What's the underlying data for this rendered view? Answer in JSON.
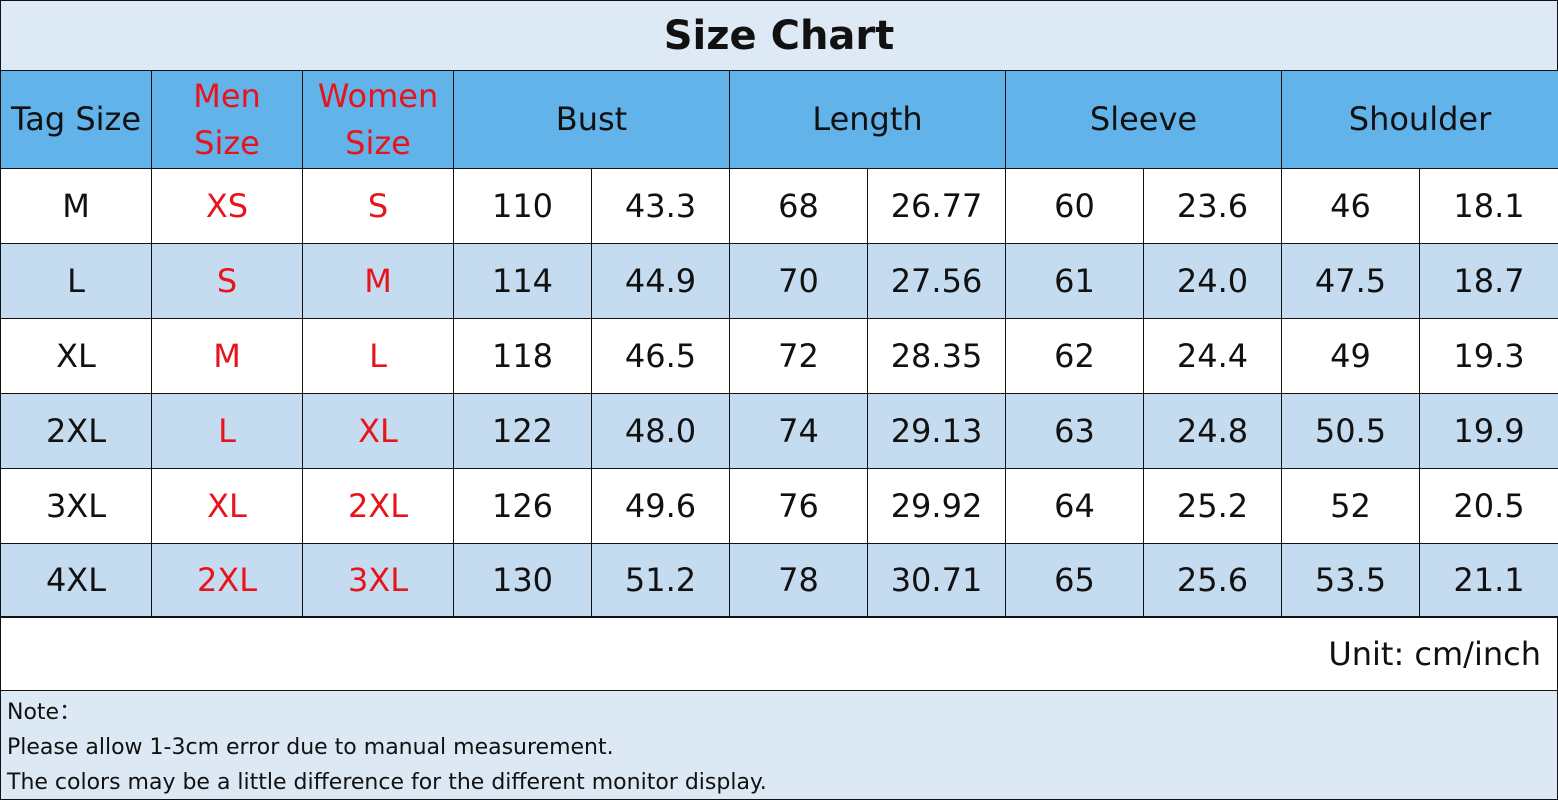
{
  "header": {
    "title": "Size Chart"
  },
  "table": {
    "columns": [
      "Tag Size",
      "Men Size",
      "Women Size",
      "Bust",
      "Length",
      "Sleeve",
      "Shoulder"
    ],
    "rows": [
      [
        "M",
        "XS",
        "S",
        "110",
        "43.3",
        "68",
        "26.77",
        "60",
        "23.6",
        "46",
        "18.1"
      ],
      [
        "L",
        "S",
        "M",
        "114",
        "44.9",
        "70",
        "27.56",
        "61",
        "24.0",
        "47.5",
        "18.7"
      ],
      [
        "XL",
        "M",
        "L",
        "118",
        "46.5",
        "72",
        "28.35",
        "62",
        "24.4",
        "49",
        "19.3"
      ],
      [
        "2XL",
        "L",
        "XL",
        "122",
        "48.0",
        "74",
        "29.13",
        "63",
        "24.8",
        "50.5",
        "19.9"
      ],
      [
        "3XL",
        "XL",
        "2XL",
        "126",
        "49.6",
        "76",
        "29.92",
        "64",
        "25.2",
        "52",
        "20.5"
      ],
      [
        "4XL",
        "2XL",
        "3XL",
        "130",
        "51.2",
        "78",
        "30.71",
        "65",
        "25.6",
        "53.5",
        "21.1"
      ]
    ]
  },
  "unit": "Unit: cm/inch",
  "note": {
    "lines": [
      "Note：",
      "Please allow 1-3cm error due to manual measurement.",
      "The colors may be a little difference for the different monitor display."
    ]
  }
}
